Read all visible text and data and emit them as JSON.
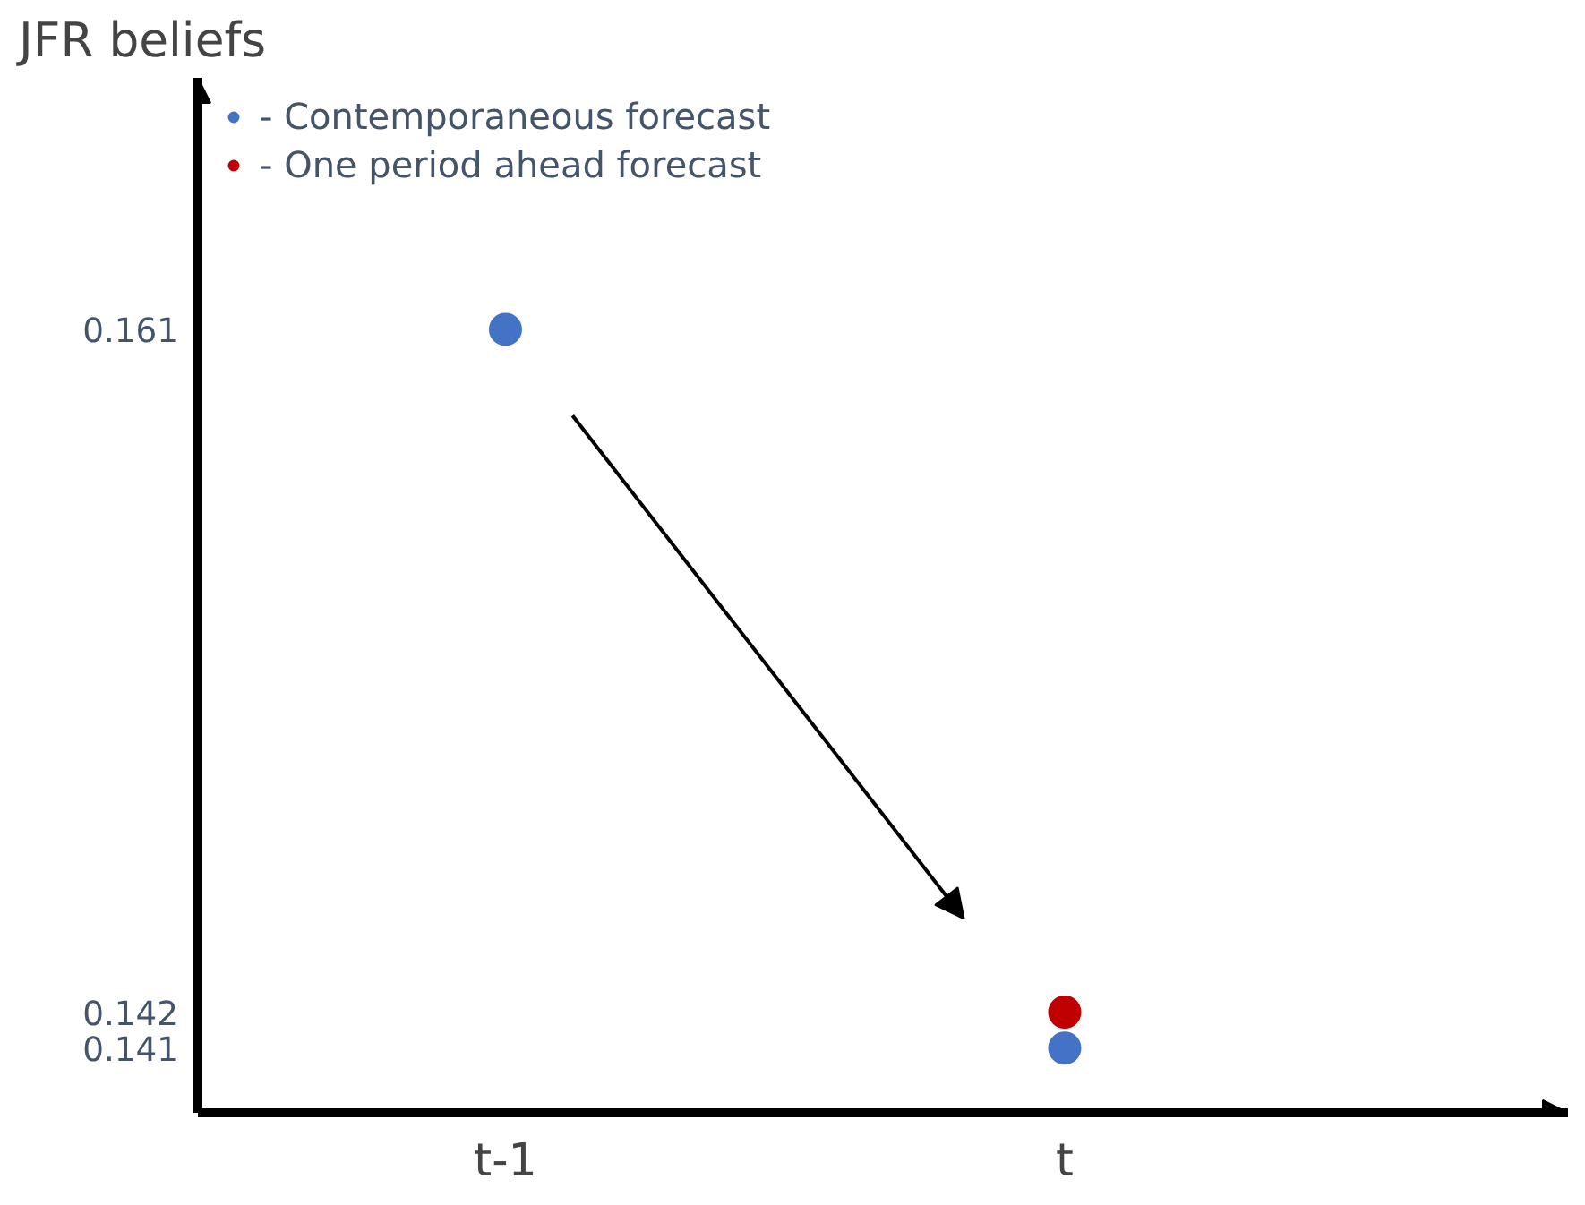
{
  "chart_data": {
    "type": "scatter",
    "ylabel": "JFR beliefs",
    "categories": [
      "t-1",
      "t"
    ],
    "series": [
      {
        "name": "- Contemporaneous forecast",
        "color": "#4472c4",
        "values": [
          0.161,
          0.141
        ]
      },
      {
        "name": "- One period ahead forecast",
        "color": "#c00000",
        "values": [
          null,
          0.142
        ]
      }
    ],
    "ylim": [
      0.1392,
      0.168
    ],
    "yticks": [
      0.141,
      0.142,
      0.161
    ],
    "grid": false,
    "legend": "top left",
    "marker": "circle"
  }
}
